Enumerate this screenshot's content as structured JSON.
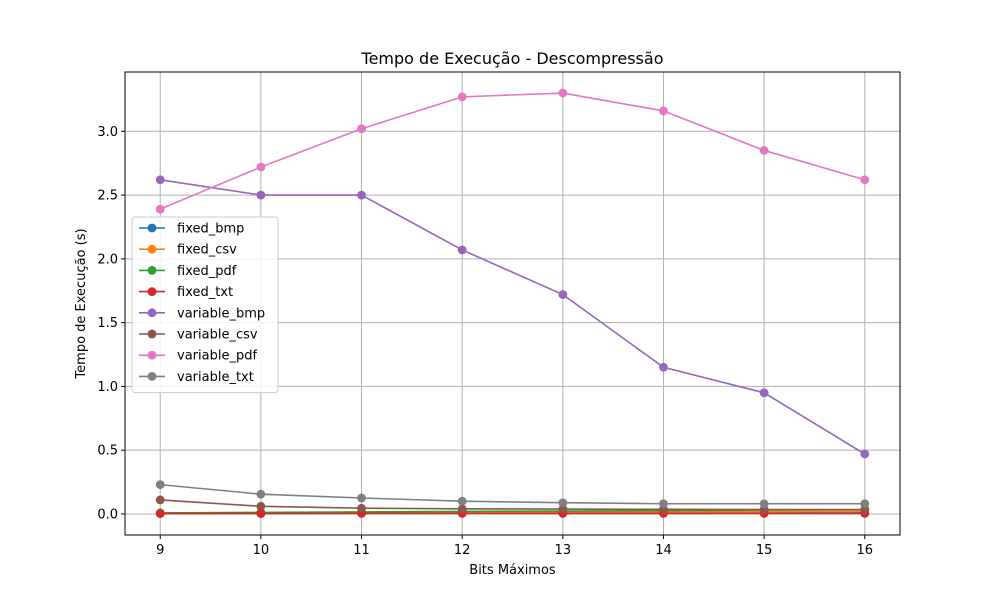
{
  "chart_data": {
    "type": "line",
    "title": "Tempo de Execução - Descompressão",
    "xlabel": "Bits Máximos",
    "ylabel": "Tempo de Execução (s)",
    "x": [
      9,
      10,
      11,
      12,
      13,
      14,
      15,
      16
    ],
    "xlim": [
      8.65,
      16.35
    ],
    "ylim": [
      -0.165,
      3.465
    ],
    "yticks": [
      0.0,
      0.5,
      1.0,
      1.5,
      2.0,
      2.5,
      3.0
    ],
    "ytick_labels": [
      "0.0",
      "0.5",
      "1.0",
      "1.5",
      "2.0",
      "2.5",
      "3.0"
    ],
    "xtick_labels": [
      "9",
      "10",
      "11",
      "12",
      "13",
      "14",
      "15",
      "16"
    ],
    "grid": true,
    "legend_position": "center-left",
    "series": [
      {
        "name": "fixed_bmp",
        "color": "#1f77b4",
        "values": [
          0.004,
          0.005,
          0.006,
          0.007,
          0.008,
          0.009,
          0.01,
          0.011
        ]
      },
      {
        "name": "fixed_csv",
        "color": "#ff7f0e",
        "values": [
          0.006,
          0.008,
          0.01,
          0.012,
          0.014,
          0.016,
          0.018,
          0.02
        ]
      },
      {
        "name": "fixed_pdf",
        "color": "#2ca02c",
        "values": [
          0.008,
          0.012,
          0.016,
          0.02,
          0.023,
          0.026,
          0.03,
          0.033
        ]
      },
      {
        "name": "fixed_txt",
        "color": "#d62728",
        "values": [
          0.003,
          0.003,
          0.004,
          0.004,
          0.004,
          0.004,
          0.004,
          0.004
        ]
      },
      {
        "name": "variable_bmp",
        "color": "#9467bd",
        "values": [
          2.62,
          2.5,
          2.5,
          2.07,
          1.72,
          1.15,
          0.95,
          0.47
        ]
      },
      {
        "name": "variable_csv",
        "color": "#8c564b",
        "values": [
          0.11,
          0.06,
          0.045,
          0.04,
          0.038,
          0.036,
          0.035,
          0.035
        ]
      },
      {
        "name": "variable_pdf",
        "color": "#e377c2",
        "values": [
          2.39,
          2.72,
          3.02,
          3.27,
          3.3,
          3.16,
          2.85,
          2.62
        ]
      },
      {
        "name": "variable_txt",
        "color": "#7f7f7f",
        "values": [
          0.23,
          0.155,
          0.125,
          0.1,
          0.088,
          0.08,
          0.08,
          0.08
        ]
      }
    ]
  }
}
